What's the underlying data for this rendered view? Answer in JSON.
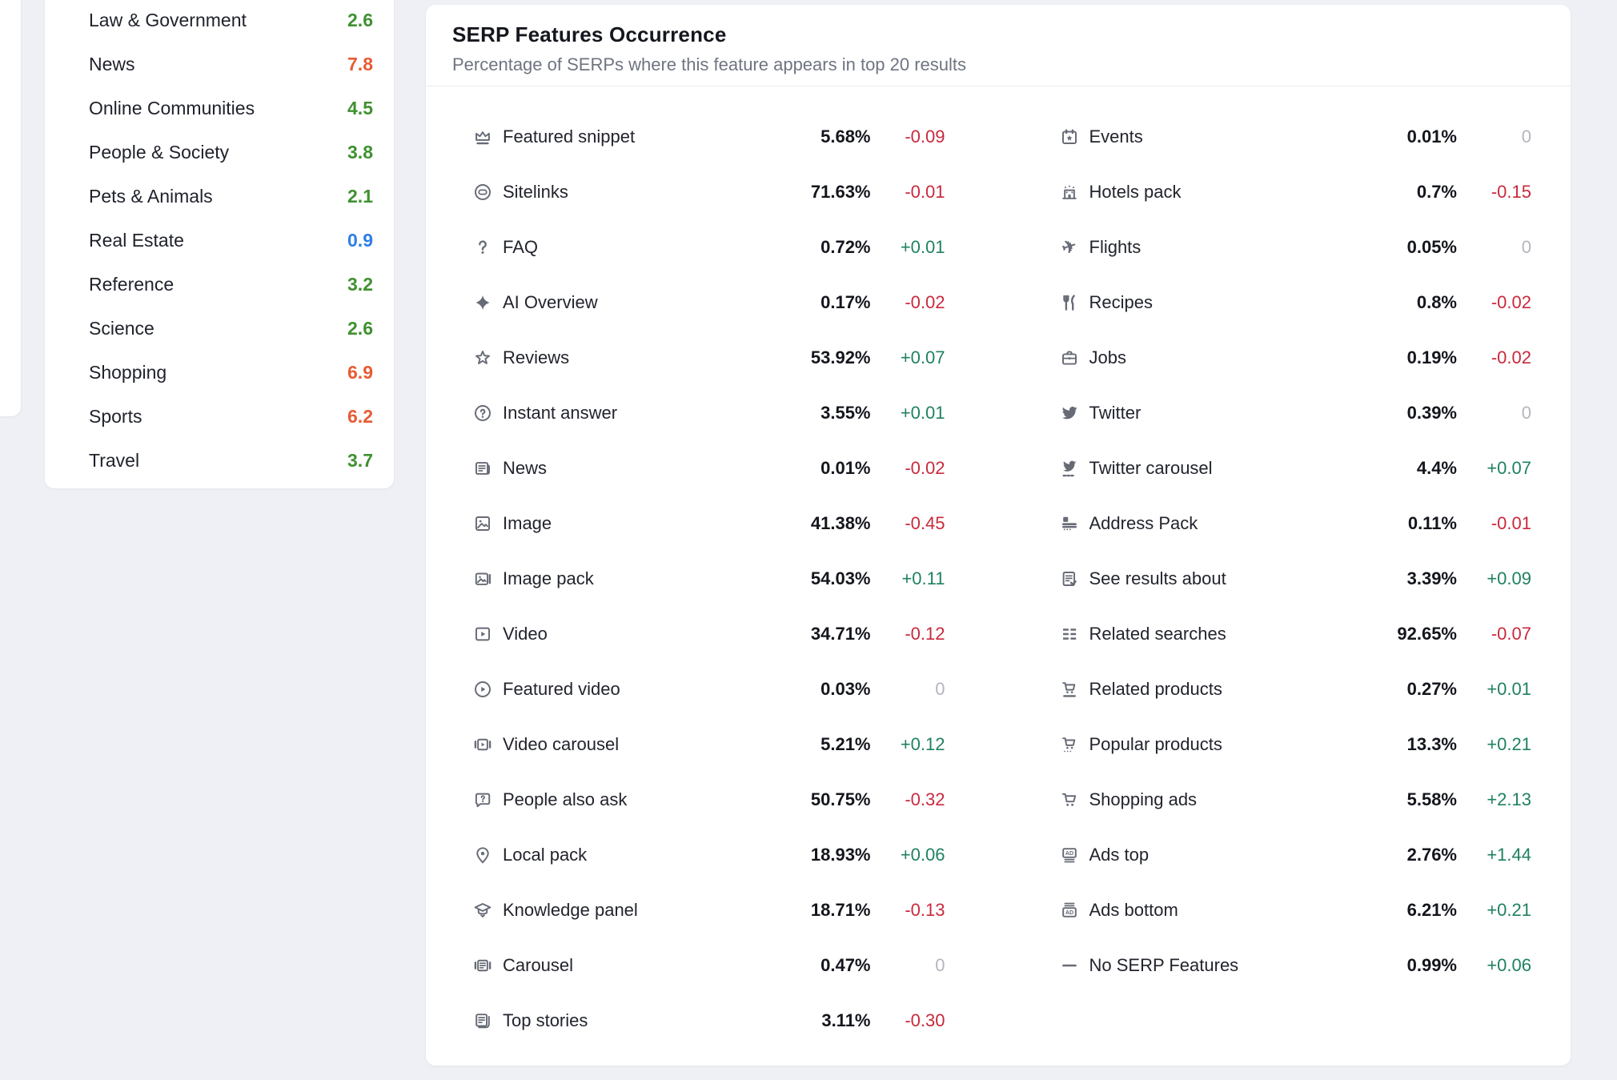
{
  "colors": {
    "green": "#3f9130",
    "orange": "#e65c33",
    "blue": "#2e7ee5",
    "up": "#1f8162",
    "down": "#c9293c",
    "zero": "#b3b6bf"
  },
  "sidebar": {
    "items": [
      {
        "label": "Law & Government",
        "value": "2.6",
        "color": "green"
      },
      {
        "label": "News",
        "value": "7.8",
        "color": "orange"
      },
      {
        "label": "Online Communities",
        "value": "4.5",
        "color": "green"
      },
      {
        "label": "People & Society",
        "value": "3.8",
        "color": "green"
      },
      {
        "label": "Pets & Animals",
        "value": "2.1",
        "color": "green"
      },
      {
        "label": "Real Estate",
        "value": "0.9",
        "color": "blue"
      },
      {
        "label": "Reference",
        "value": "3.2",
        "color": "green"
      },
      {
        "label": "Science",
        "value": "2.6",
        "color": "green"
      },
      {
        "label": "Shopping",
        "value": "6.9",
        "color": "orange"
      },
      {
        "label": "Sports",
        "value": "6.2",
        "color": "orange"
      },
      {
        "label": "Travel",
        "value": "3.7",
        "color": "green"
      }
    ]
  },
  "card": {
    "title": "SERP Features Occurrence",
    "subtitle": "Percentage of SERPs where this feature appears in top 20 results",
    "columns": [
      [
        {
          "icon": "featured-snippet",
          "label": "Featured snippet",
          "value": "5.68%",
          "change": "-0.09"
        },
        {
          "icon": "sitelinks",
          "label": "Sitelinks",
          "value": "71.63%",
          "change": "-0.01"
        },
        {
          "icon": "faq",
          "label": "FAQ",
          "value": "0.72%",
          "change": "+0.01"
        },
        {
          "icon": "ai-overview",
          "label": "AI Overview",
          "value": "0.17%",
          "change": "-0.02"
        },
        {
          "icon": "reviews",
          "label": "Reviews",
          "value": "53.92%",
          "change": "+0.07"
        },
        {
          "icon": "instant-answer",
          "label": "Instant answer",
          "value": "3.55%",
          "change": "+0.01"
        },
        {
          "icon": "news",
          "label": "News",
          "value": "0.01%",
          "change": "-0.02"
        },
        {
          "icon": "image",
          "label": "Image",
          "value": "41.38%",
          "change": "-0.45"
        },
        {
          "icon": "image-pack",
          "label": "Image pack",
          "value": "54.03%",
          "change": "+0.11"
        },
        {
          "icon": "video",
          "label": "Video",
          "value": "34.71%",
          "change": "-0.12"
        },
        {
          "icon": "featured-video",
          "label": "Featured video",
          "value": "0.03%",
          "change": "0"
        },
        {
          "icon": "video-carousel",
          "label": "Video carousel",
          "value": "5.21%",
          "change": "+0.12"
        },
        {
          "icon": "people-also-ask",
          "label": "People also ask",
          "value": "50.75%",
          "change": "-0.32"
        },
        {
          "icon": "local-pack",
          "label": "Local pack",
          "value": "18.93%",
          "change": "+0.06"
        },
        {
          "icon": "knowledge-panel",
          "label": "Knowledge panel",
          "value": "18.71%",
          "change": "-0.13"
        },
        {
          "icon": "carousel",
          "label": "Carousel",
          "value": "0.47%",
          "change": "0"
        },
        {
          "icon": "top-stories",
          "label": "Top stories",
          "value": "3.11%",
          "change": "-0.30"
        }
      ],
      [
        {
          "icon": "events",
          "label": "Events",
          "value": "0.01%",
          "change": "0"
        },
        {
          "icon": "hotels-pack",
          "label": "Hotels pack",
          "value": "0.7%",
          "change": "-0.15"
        },
        {
          "icon": "flights",
          "label": "Flights",
          "value": "0.05%",
          "change": "0"
        },
        {
          "icon": "recipes",
          "label": "Recipes",
          "value": "0.8%",
          "change": "-0.02"
        },
        {
          "icon": "jobs",
          "label": "Jobs",
          "value": "0.19%",
          "change": "-0.02"
        },
        {
          "icon": "twitter",
          "label": "Twitter",
          "value": "0.39%",
          "change": "0"
        },
        {
          "icon": "twitter-carousel",
          "label": "Twitter carousel",
          "value": "4.4%",
          "change": "+0.07"
        },
        {
          "icon": "address-pack",
          "label": "Address Pack",
          "value": "0.11%",
          "change": "-0.01"
        },
        {
          "icon": "see-results-about",
          "label": "See results about",
          "value": "3.39%",
          "change": "+0.09"
        },
        {
          "icon": "related-searches",
          "label": "Related searches",
          "value": "92.65%",
          "change": "-0.07"
        },
        {
          "icon": "related-products",
          "label": "Related products",
          "value": "0.27%",
          "change": "+0.01"
        },
        {
          "icon": "popular-products",
          "label": "Popular products",
          "value": "13.3%",
          "change": "+0.21"
        },
        {
          "icon": "shopping-ads",
          "label": "Shopping ads",
          "value": "5.58%",
          "change": "+2.13"
        },
        {
          "icon": "ads-top",
          "label": "Ads top",
          "value": "2.76%",
          "change": "+1.44"
        },
        {
          "icon": "ads-bottom",
          "label": "Ads bottom",
          "value": "6.21%",
          "change": "+0.21"
        },
        {
          "icon": "no-serp-features",
          "label": "No SERP Features",
          "value": "0.99%",
          "change": "+0.06"
        }
      ]
    ]
  }
}
